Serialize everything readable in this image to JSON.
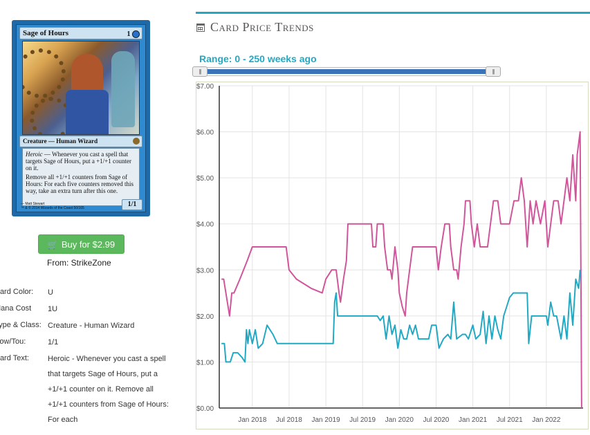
{
  "card": {
    "name": "Sage of Hours",
    "mana_symbols": "1",
    "type_line": "Creature — Human Wizard",
    "ability_1_keyword": "Heroic",
    "ability_1_text": "— Whenever you cast a spell that targets Sage of Hours, put a +1/+1 counter on it.",
    "ability_2_text": "Remove all +1/+1 counters from Sage of Hours: For each five counters removed this way, take an extra turn after this one.",
    "artist": "Matt Stewart",
    "copyright": "™ & © 2014 Wizards of the Coast 50/165",
    "power_toughness": "1/1"
  },
  "buy": {
    "label": "Buy for $2.99",
    "icon": "cart-icon",
    "from": "From: StrikeZone",
    "color": "#5cb85c"
  },
  "details": [
    {
      "label": "Card Color:",
      "value": "U"
    },
    {
      "label": "Mana Cost",
      "value": "1U"
    },
    {
      "label": "Type & Class:",
      "value": "Creature - Human Wizard"
    },
    {
      "label": "Pow/Tou:",
      "value": "1/1"
    },
    {
      "label": "Card Text:",
      "value": "Heroic - Whenever you cast a spell that targets Sage of Hours, put a +1/+1 counter on it. Remove all +1/+1 counters from Sage of Hours: For each"
    }
  ],
  "trends": {
    "title": "Card Price Trends",
    "icon": "calendar-icon",
    "range_label": "Range: 0 - 250 weeks ago",
    "slider": {
      "min_weeks": 0,
      "max_weeks": 250
    },
    "accent": "#21a9c4"
  },
  "chart_data": {
    "type": "line",
    "ylim": [
      0,
      7
    ],
    "y_ticks": [
      "$0.00",
      "$1.00",
      "$2.00",
      "$3.00",
      "$4.00",
      "$5.00",
      "$6.00",
      "$7.00"
    ],
    "x_ticks": [
      "Jan 2018",
      "Jul 2018",
      "Jan 2019",
      "Jul 2019",
      "Jan 2020",
      "Jul 2020",
      "Jan 2021",
      "Jul 2021",
      "Jan 2022"
    ],
    "grid": true,
    "series": [
      {
        "color": "#d0559a",
        "points": [
          [
            2017.58,
            2.8
          ],
          [
            2017.61,
            2.8
          ],
          [
            2017.63,
            2.6
          ],
          [
            2017.66,
            2.3
          ],
          [
            2017.69,
            2.0
          ],
          [
            2017.72,
            2.5
          ],
          [
            2017.75,
            2.5
          ],
          [
            2017.83,
            2.8
          ],
          [
            2017.93,
            3.2
          ],
          [
            2018.0,
            3.5
          ],
          [
            2018.25,
            3.5
          ],
          [
            2018.46,
            3.5
          ],
          [
            2018.5,
            3.0
          ],
          [
            2018.6,
            2.8
          ],
          [
            2018.8,
            2.6
          ],
          [
            2018.95,
            2.5
          ],
          [
            2019.0,
            2.8
          ],
          [
            2019.08,
            3.0
          ],
          [
            2019.14,
            3.0
          ],
          [
            2019.18,
            2.5
          ],
          [
            2019.2,
            2.3
          ],
          [
            2019.24,
            2.8
          ],
          [
            2019.28,
            3.2
          ],
          [
            2019.3,
            4.0
          ],
          [
            2019.5,
            4.0
          ],
          [
            2019.62,
            4.0
          ],
          [
            2019.64,
            3.5
          ],
          [
            2019.68,
            3.5
          ],
          [
            2019.7,
            4.0
          ],
          [
            2019.78,
            4.0
          ],
          [
            2019.8,
            3.5
          ],
          [
            2019.84,
            3.0
          ],
          [
            2019.88,
            3.0
          ],
          [
            2019.9,
            2.8
          ],
          [
            2019.94,
            3.5
          ],
          [
            2019.98,
            3.0
          ],
          [
            2020.0,
            2.5
          ],
          [
            2020.04,
            2.2
          ],
          [
            2020.08,
            2.0
          ],
          [
            2020.1,
            2.5
          ],
          [
            2020.14,
            3.0
          ],
          [
            2020.18,
            3.5
          ],
          [
            2020.45,
            3.5
          ],
          [
            2020.5,
            3.5
          ],
          [
            2020.53,
            3.0
          ],
          [
            2020.57,
            3.5
          ],
          [
            2020.62,
            4.0
          ],
          [
            2020.68,
            4.0
          ],
          [
            2020.7,
            3.5
          ],
          [
            2020.74,
            3.0
          ],
          [
            2020.78,
            3.0
          ],
          [
            2020.8,
            2.8
          ],
          [
            2020.84,
            3.5
          ],
          [
            2020.88,
            4.0
          ],
          [
            2020.9,
            4.5
          ],
          [
            2020.96,
            4.5
          ],
          [
            2020.98,
            4.0
          ],
          [
            2021.02,
            3.5
          ],
          [
            2021.06,
            4.0
          ],
          [
            2021.1,
            3.5
          ],
          [
            2021.14,
            3.5
          ],
          [
            2021.2,
            3.5
          ],
          [
            2021.24,
            4.0
          ],
          [
            2021.28,
            4.5
          ],
          [
            2021.34,
            4.5
          ],
          [
            2021.38,
            4.0
          ],
          [
            2021.5,
            4.0
          ],
          [
            2021.56,
            4.5
          ],
          [
            2021.62,
            4.5
          ],
          [
            2021.66,
            5.0
          ],
          [
            2021.7,
            4.5
          ],
          [
            2021.74,
            3.5
          ],
          [
            2021.78,
            4.5
          ],
          [
            2021.82,
            4.0
          ],
          [
            2021.86,
            4.5
          ],
          [
            2021.92,
            4.0
          ],
          [
            2021.98,
            4.5
          ],
          [
            2022.02,
            3.5
          ],
          [
            2022.06,
            4.0
          ],
          [
            2022.1,
            4.5
          ],
          [
            2022.16,
            4.5
          ],
          [
            2022.2,
            4.0
          ],
          [
            2022.24,
            4.5
          ],
          [
            2022.28,
            5.0
          ],
          [
            2022.32,
            4.5
          ],
          [
            2022.36,
            5.5
          ],
          [
            2022.4,
            4.5
          ],
          [
            2022.42,
            5.5
          ],
          [
            2022.46,
            6.0
          ],
          [
            2022.48,
            0.0
          ]
        ]
      },
      {
        "color": "#21a9c4",
        "points": [
          [
            2017.58,
            1.4
          ],
          [
            2017.62,
            1.4
          ],
          [
            2017.64,
            1.0
          ],
          [
            2017.7,
            1.0
          ],
          [
            2017.74,
            1.2
          ],
          [
            2017.8,
            1.2
          ],
          [
            2017.86,
            1.1
          ],
          [
            2017.9,
            1.0
          ],
          [
            2017.92,
            1.7
          ],
          [
            2017.94,
            1.4
          ],
          [
            2017.96,
            1.7
          ],
          [
            2018.0,
            1.4
          ],
          [
            2018.04,
            1.7
          ],
          [
            2018.08,
            1.3
          ],
          [
            2018.14,
            1.4
          ],
          [
            2018.2,
            1.8
          ],
          [
            2018.28,
            1.6
          ],
          [
            2018.34,
            1.4
          ],
          [
            2018.6,
            1.4
          ],
          [
            2019.0,
            1.4
          ],
          [
            2019.1,
            1.4
          ],
          [
            2019.12,
            2.3
          ],
          [
            2019.14,
            2.5
          ],
          [
            2019.16,
            2.0
          ],
          [
            2019.5,
            2.0
          ],
          [
            2019.7,
            2.0
          ],
          [
            2019.74,
            1.9
          ],
          [
            2019.78,
            2.0
          ],
          [
            2019.82,
            1.5
          ],
          [
            2019.86,
            2.0
          ],
          [
            2019.9,
            1.6
          ],
          [
            2019.94,
            1.8
          ],
          [
            2019.98,
            1.3
          ],
          [
            2020.02,
            1.7
          ],
          [
            2020.06,
            1.5
          ],
          [
            2020.1,
            1.5
          ],
          [
            2020.14,
            1.8
          ],
          [
            2020.18,
            1.6
          ],
          [
            2020.22,
            1.8
          ],
          [
            2020.26,
            1.5
          ],
          [
            2020.3,
            1.5
          ],
          [
            2020.4,
            1.5
          ],
          [
            2020.44,
            1.8
          ],
          [
            2020.5,
            1.8
          ],
          [
            2020.54,
            1.3
          ],
          [
            2020.6,
            1.5
          ],
          [
            2020.66,
            1.6
          ],
          [
            2020.7,
            1.5
          ],
          [
            2020.74,
            2.3
          ],
          [
            2020.78,
            1.5
          ],
          [
            2020.86,
            1.6
          ],
          [
            2020.9,
            1.6
          ],
          [
            2020.94,
            1.5
          ],
          [
            2021.0,
            1.8
          ],
          [
            2021.04,
            1.5
          ],
          [
            2021.1,
            1.6
          ],
          [
            2021.14,
            2.1
          ],
          [
            2021.18,
            1.4
          ],
          [
            2021.22,
            2.0
          ],
          [
            2021.26,
            1.5
          ],
          [
            2021.3,
            2.0
          ],
          [
            2021.34,
            1.7
          ],
          [
            2021.38,
            1.5
          ],
          [
            2021.42,
            2.0
          ],
          [
            2021.46,
            2.2
          ],
          [
            2021.5,
            2.4
          ],
          [
            2021.55,
            2.5
          ],
          [
            2021.6,
            2.5
          ],
          [
            2021.7,
            2.5
          ],
          [
            2021.74,
            2.5
          ],
          [
            2021.76,
            1.4
          ],
          [
            2021.8,
            2.0
          ],
          [
            2021.9,
            2.0
          ],
          [
            2021.96,
            2.0
          ],
          [
            2022.0,
            2.0
          ],
          [
            2022.02,
            1.8
          ],
          [
            2022.06,
            2.3
          ],
          [
            2022.1,
            2.0
          ],
          [
            2022.14,
            2.0
          ],
          [
            2022.2,
            1.5
          ],
          [
            2022.24,
            2.0
          ],
          [
            2022.28,
            1.5
          ],
          [
            2022.32,
            2.5
          ],
          [
            2022.36,
            1.8
          ],
          [
            2022.4,
            2.8
          ],
          [
            2022.44,
            2.6
          ],
          [
            2022.46,
            3.0
          ]
        ]
      }
    ]
  }
}
